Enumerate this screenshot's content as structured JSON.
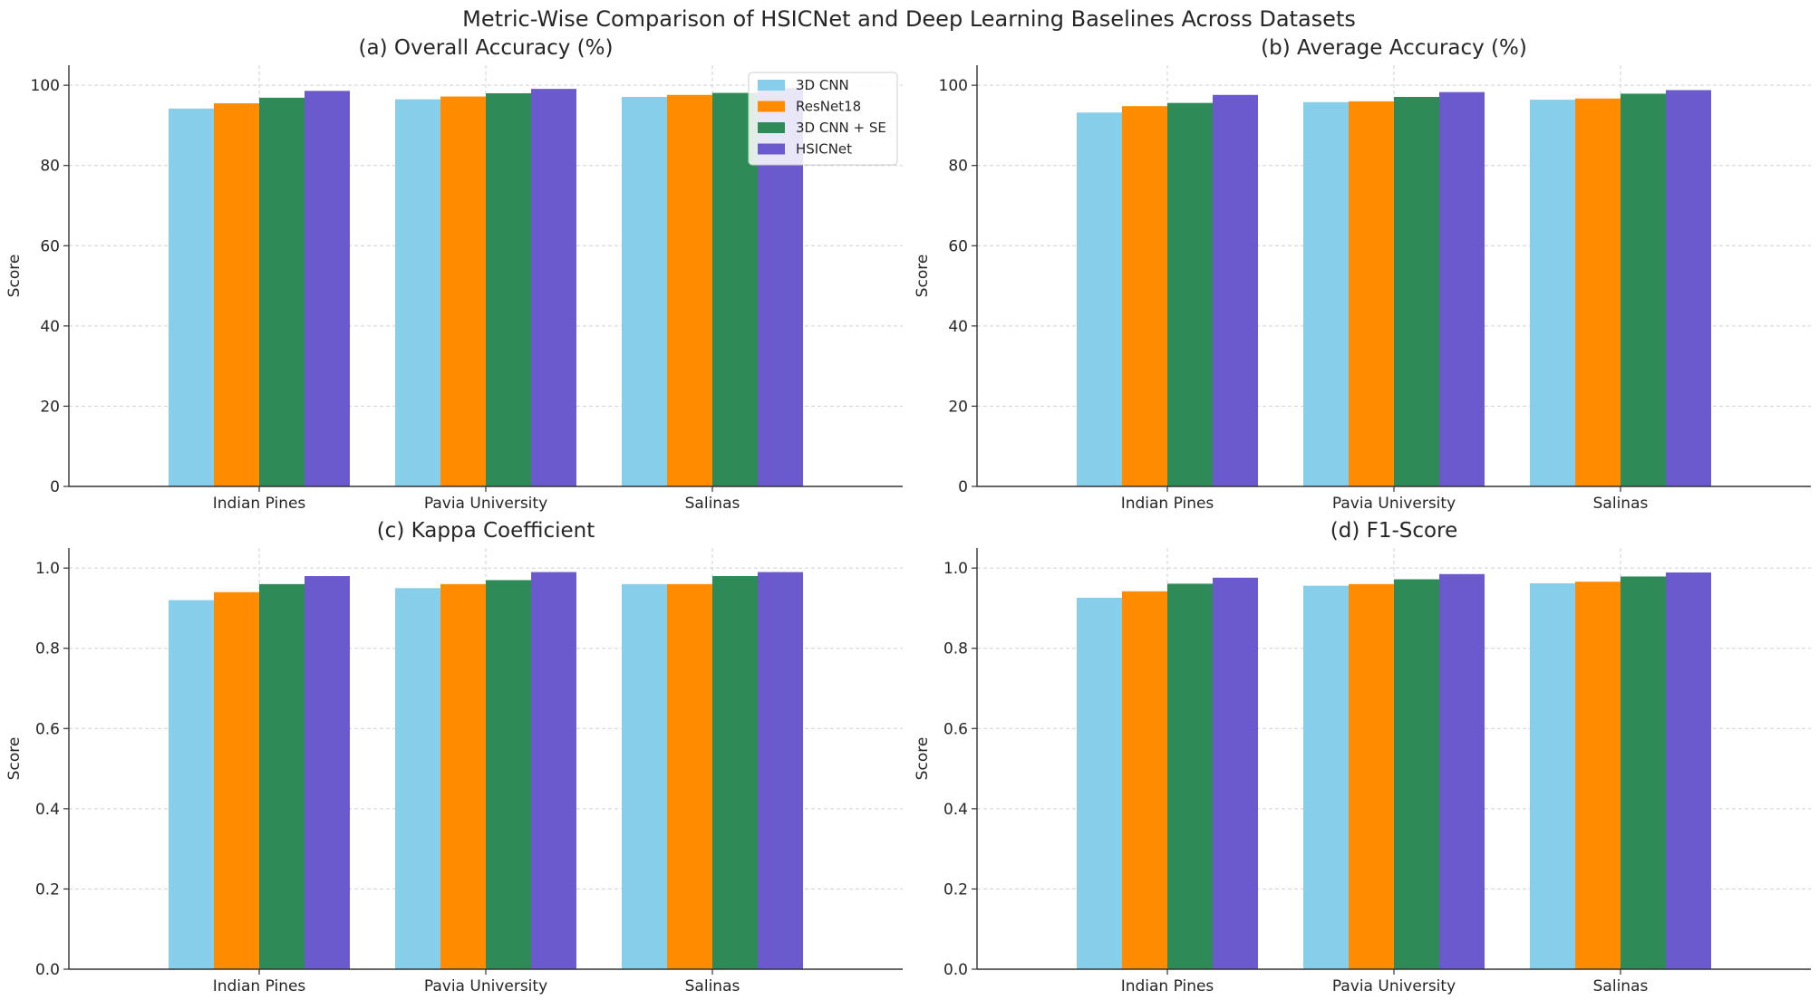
{
  "suptitle": "Metric-Wise Comparison of HSICNet and Deep Learning Baselines Across Datasets",
  "legend": {
    "entries": [
      "3D CNN",
      "ResNet18",
      "3D CNN + SE",
      "HSICNet"
    ],
    "colors": [
      "#87CEEB",
      "#FF8C00",
      "#2E8B57",
      "#6A5ACD"
    ],
    "location": "upper right of panel (a)"
  },
  "chart_data": [
    {
      "type": "bar",
      "title": "(a) Overall Accuracy (%)",
      "ylabel": "Score",
      "xlabel": "",
      "categories": [
        "Indian Pines",
        "Pavia University",
        "Salinas"
      ],
      "ylim": [
        0,
        105
      ],
      "yticks": [
        "0",
        "20",
        "40",
        "60",
        "80",
        "100"
      ],
      "grid": true,
      "legend": "upper right",
      "series": [
        {
          "name": "3D CNN",
          "values": [
            94.2,
            96.5,
            97.1
          ]
        },
        {
          "name": "ResNet18",
          "values": [
            95.5,
            97.2,
            97.6
          ]
        },
        {
          "name": "3D CNN + SE",
          "values": [
            96.9,
            98.0,
            98.1
          ]
        },
        {
          "name": "HSICNet",
          "values": [
            98.6,
            99.1,
            99.3
          ]
        }
      ]
    },
    {
      "type": "bar",
      "title": "(b) Average Accuracy (%)",
      "ylabel": "Score",
      "xlabel": "",
      "categories": [
        "Indian Pines",
        "Pavia University",
        "Salinas"
      ],
      "ylim": [
        0,
        105
      ],
      "yticks": [
        "0",
        "20",
        "40",
        "60",
        "80",
        "100"
      ],
      "grid": true,
      "series": [
        {
          "name": "3D CNN",
          "values": [
            93.2,
            95.8,
            96.4
          ]
        },
        {
          "name": "ResNet18",
          "values": [
            94.8,
            96.0,
            96.7
          ]
        },
        {
          "name": "3D CNN + SE",
          "values": [
            95.6,
            97.1,
            97.9
          ]
        },
        {
          "name": "HSICNet",
          "values": [
            97.6,
            98.3,
            98.8
          ]
        }
      ]
    },
    {
      "type": "bar",
      "title": "(c) Kappa Coefficient",
      "ylabel": "Score",
      "xlabel": "",
      "categories": [
        "Indian Pines",
        "Pavia University",
        "Salinas"
      ],
      "ylim": [
        0,
        1.05
      ],
      "yticks": [
        "0.0",
        "0.2",
        "0.4",
        "0.6",
        "0.8",
        "1.0"
      ],
      "grid": true,
      "series": [
        {
          "name": "3D CNN",
          "values": [
            0.92,
            0.95,
            0.96
          ]
        },
        {
          "name": "ResNet18",
          "values": [
            0.94,
            0.96,
            0.96
          ]
        },
        {
          "name": "3D CNN + SE",
          "values": [
            0.96,
            0.97,
            0.98
          ]
        },
        {
          "name": "HSICNet",
          "values": [
            0.98,
            0.99,
            0.99
          ]
        }
      ]
    },
    {
      "type": "bar",
      "title": "(d) F1-Score",
      "ylabel": "Score",
      "xlabel": "",
      "categories": [
        "Indian Pines",
        "Pavia University",
        "Salinas"
      ],
      "ylim": [
        0,
        1.05
      ],
      "yticks": [
        "0.0",
        "0.2",
        "0.4",
        "0.6",
        "0.8",
        "1.0"
      ],
      "grid": true,
      "series": [
        {
          "name": "3D CNN",
          "values": [
            0.926,
            0.956,
            0.962
          ]
        },
        {
          "name": "ResNet18",
          "values": [
            0.942,
            0.96,
            0.966
          ]
        },
        {
          "name": "3D CNN + SE",
          "values": [
            0.961,
            0.972,
            0.979
          ]
        },
        {
          "name": "HSICNet",
          "values": [
            0.976,
            0.985,
            0.989
          ]
        }
      ]
    }
  ]
}
